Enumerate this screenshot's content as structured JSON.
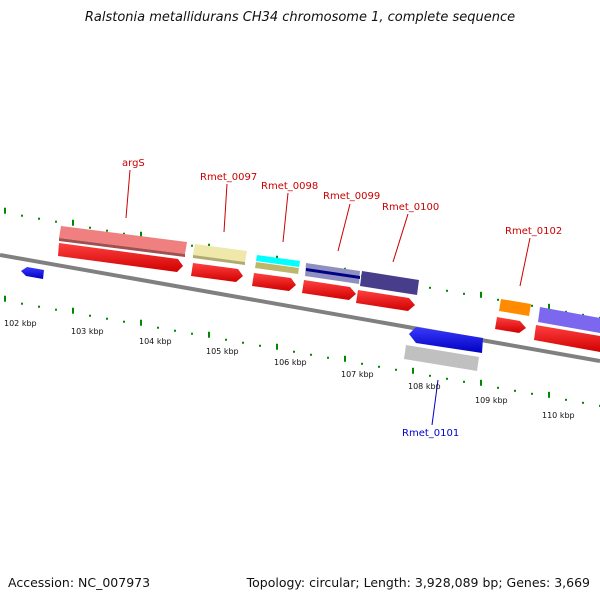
{
  "title": "Ralstonia metallidurans CH34 chromosome 1, complete sequence",
  "footer": {
    "accession": "Accession: NC_007973",
    "summary": "Topology: circular; Length: 3,928,089 bp; Genes: 3,669"
  },
  "ticks": [
    "102 kbp",
    "103 kbp",
    "104 kbp",
    "105 kbp",
    "106 kbp",
    "107 kbp",
    "108 kbp",
    "109 kbp",
    "110 kbp"
  ],
  "gene_labels": [
    {
      "name": "argS",
      "color": "#cc0000"
    },
    {
      "name": "Rmet_0097",
      "color": "#cc0000"
    },
    {
      "name": "Rmet_0098",
      "color": "#cc0000"
    },
    {
      "name": "Rmet_0099",
      "color": "#cc0000"
    },
    {
      "name": "Rmet_0100",
      "color": "#cc0000"
    },
    {
      "name": "Rmet_0101",
      "color": "#0000cc"
    },
    {
      "name": "Rmet_0102",
      "color": "#cc0000"
    }
  ],
  "colors": {
    "forward_strand": "#ff0000",
    "reverse_strand": "#0000ee",
    "backbone": "#808080",
    "gc_skew_ticks": "#008800",
    "argS": "#f08080",
    "Rmet_0097": "#eee8aa",
    "Rmet_0098_a": "#00ffff",
    "Rmet_0098_b": "#bdb76b",
    "Rmet_0099": "#3a3a9a",
    "Rmet_0100": "#483d8b",
    "Rmet_0101": "#c0c0c0",
    "Rmet_0102": "#ff8c00",
    "right_gene": "#7b68ee"
  }
}
